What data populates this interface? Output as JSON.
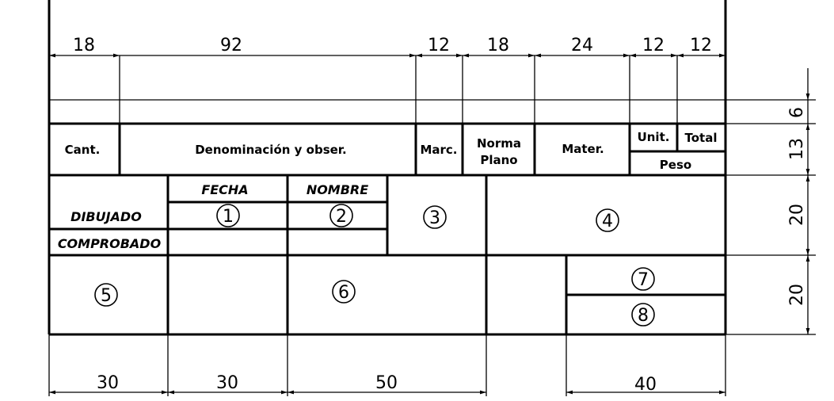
{
  "top_dims": [
    "18",
    "92",
    "12",
    "18",
    "24",
    "12",
    "12"
  ],
  "bottom_dims": [
    "30",
    "30",
    "50",
    "40"
  ],
  "right_dims": [
    "6",
    "13",
    "20",
    "20"
  ],
  "parts_header": {
    "cant": "Cant.",
    "denominacion": "Denominación y obser.",
    "marc": "Marc.",
    "norma": "Norma",
    "plano": "Plano",
    "mater": "Mater.",
    "unit": "Unit.",
    "total": "Total",
    "peso": "Peso"
  },
  "title_block": {
    "fecha": "FECHA",
    "nombre": "NOMBRE",
    "dibujado": "DIBUJADO",
    "comprobado": "COMPROBADO"
  },
  "markers": [
    "1",
    "2",
    "3",
    "4",
    "5",
    "6",
    "7",
    "8"
  ]
}
